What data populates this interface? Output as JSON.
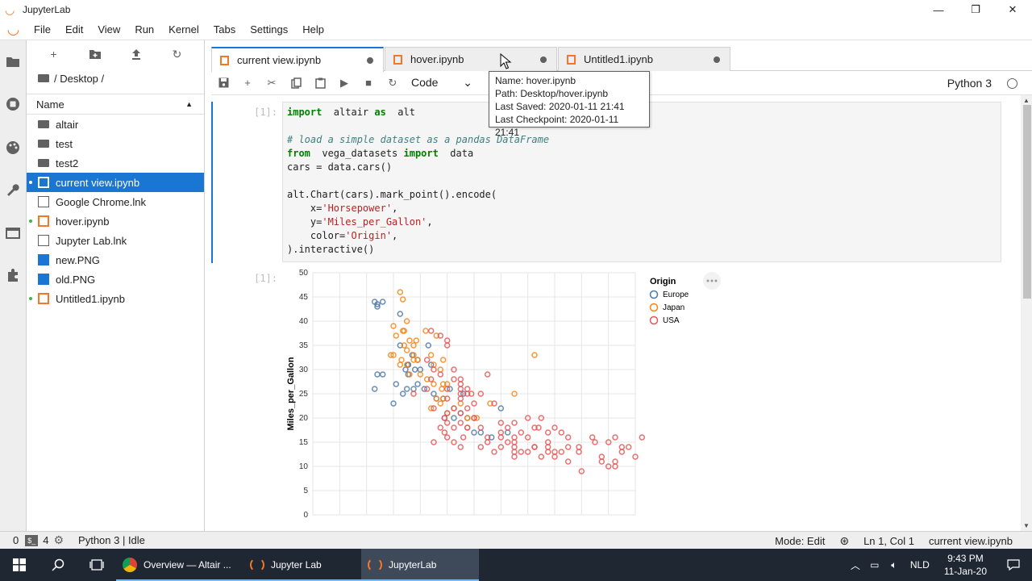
{
  "window": {
    "title": "JupyterLab",
    "minimize": "—",
    "maximize": "❐",
    "close": "✕"
  },
  "menu": [
    "File",
    "Edit",
    "View",
    "Run",
    "Kernel",
    "Tabs",
    "Settings",
    "Help"
  ],
  "filebrowser": {
    "breadcrumb": "/ Desktop /",
    "header": "Name",
    "items": [
      {
        "name": "altair",
        "type": "folder",
        "running": false,
        "selected": false
      },
      {
        "name": "test",
        "type": "folder",
        "running": false,
        "selected": false
      },
      {
        "name": "test2",
        "type": "folder",
        "running": false,
        "selected": false
      },
      {
        "name": "current view.ipynb",
        "type": "notebook",
        "running": true,
        "selected": true
      },
      {
        "name": "Google Chrome.lnk",
        "type": "file",
        "running": false,
        "selected": false
      },
      {
        "name": "hover.ipynb",
        "type": "notebook",
        "running": true,
        "selected": false
      },
      {
        "name": "Jupyter Lab.lnk",
        "type": "file",
        "running": false,
        "selected": false
      },
      {
        "name": "new.PNG",
        "type": "image",
        "running": false,
        "selected": false
      },
      {
        "name": "old.PNG",
        "type": "image",
        "running": false,
        "selected": false
      },
      {
        "name": "Untitled1.ipynb",
        "type": "notebook",
        "running": true,
        "selected": false
      }
    ]
  },
  "tabs": [
    {
      "label": "current view.ipynb",
      "active": true
    },
    {
      "label": "hover.ipynb",
      "active": false
    },
    {
      "label": "Untitled1.ipynb",
      "active": false
    }
  ],
  "toolbar": {
    "cell_type": "Code",
    "kernel": "Python 3"
  },
  "tooltip": {
    "name": "Name: hover.ipynb",
    "path": "Path: Desktop/hover.ipynb",
    "saved": "Last Saved: 2020-01-11 21:41",
    "checkpoint": "Last Checkpoint: 2020-01-11 21:41"
  },
  "cell": {
    "prompt_in": "[1]:",
    "prompt_out": "[1]:",
    "code": [
      [
        [
          "kw",
          "import"
        ],
        [
          "",
          "  altair "
        ],
        [
          "kw",
          "as"
        ],
        [
          "",
          "  alt"
        ]
      ],
      [],
      [
        [
          "cm",
          "# load a simple dataset as a pandas DataFrame"
        ]
      ],
      [
        [
          "kw",
          "from"
        ],
        [
          "",
          "  vega_datasets "
        ],
        [
          "kw",
          "import"
        ],
        [
          "",
          "  data"
        ]
      ],
      [
        [
          "",
          "cars = data.cars()"
        ]
      ],
      [],
      [
        [
          "",
          "alt.Chart(cars).mark_point().encode("
        ]
      ],
      [
        [
          "",
          "    x="
        ],
        [
          "st",
          "'Horsepower'"
        ],
        [
          "",
          ","
        ]
      ],
      [
        [
          "",
          "    y="
        ],
        [
          "st",
          "'Miles_per_Gallon'"
        ],
        [
          "",
          ","
        ]
      ],
      [
        [
          "",
          "    color="
        ],
        [
          "st",
          "'Origin'"
        ],
        [
          "",
          ","
        ]
      ],
      [
        [
          "",
          ").interactive()"
        ]
      ]
    ]
  },
  "chart_data": {
    "type": "scatter",
    "title": "",
    "xlabel": "",
    "ylabel": "Miles_per_Gallon",
    "ylim": [
      0,
      50
    ],
    "xlim": [
      0,
      240
    ],
    "y_ticks": [
      0,
      5,
      10,
      15,
      20,
      25,
      30,
      35,
      40,
      45,
      50
    ],
    "grid": true,
    "legend_title": "Origin",
    "legend_position": "right",
    "series": [
      {
        "name": "Europe",
        "color": "#4c78a8",
        "points": [
          [
            46,
            44
          ],
          [
            48,
            43.5
          ],
          [
            52,
            44
          ],
          [
            65,
            41.5
          ],
          [
            48,
            43
          ],
          [
            46,
            26
          ],
          [
            52,
            29
          ],
          [
            48,
            29
          ],
          [
            62,
            27
          ],
          [
            67,
            25
          ],
          [
            70,
            26
          ],
          [
            71,
            29
          ],
          [
            75,
            26
          ],
          [
            78,
            27
          ],
          [
            90,
            25
          ],
          [
            88,
            31
          ],
          [
            80,
            30
          ],
          [
            71,
            31
          ],
          [
            76,
            30
          ],
          [
            92,
            24
          ],
          [
            97,
            24
          ],
          [
            102,
            26
          ],
          [
            110,
            21
          ],
          [
            112,
            25
          ],
          [
            115,
            20
          ],
          [
            120,
            17
          ],
          [
            125,
            17
          ],
          [
            133,
            16
          ],
          [
            140,
            22
          ],
          [
            145,
            17
          ],
          [
            74,
            33
          ],
          [
            69,
            30
          ],
          [
            78,
            32
          ],
          [
            83,
            26
          ],
          [
            98,
            20
          ],
          [
            105,
            20
          ],
          [
            60,
            23
          ],
          [
            65,
            35
          ],
          [
            71,
            31
          ],
          [
            86,
            35
          ]
        ]
      },
      {
        "name": "Japan",
        "color": "#f58518",
        "points": [
          [
            65,
            46
          ],
          [
            67,
            44.5
          ],
          [
            60,
            39
          ],
          [
            62,
            37
          ],
          [
            68,
            38
          ],
          [
            70,
            34
          ],
          [
            75,
            32
          ],
          [
            78,
            32
          ],
          [
            72,
            36
          ],
          [
            88,
            33
          ],
          [
            90,
            31
          ],
          [
            95,
            30
          ],
          [
            97,
            27
          ],
          [
            100,
            27
          ],
          [
            75,
            33
          ],
          [
            68,
            35
          ],
          [
            65,
            31
          ],
          [
            60,
            33
          ],
          [
            58,
            33
          ],
          [
            66,
            32
          ],
          [
            70,
            31
          ],
          [
            72,
            29
          ],
          [
            80,
            29
          ],
          [
            85,
            28
          ],
          [
            90,
            27
          ],
          [
            92,
            24
          ],
          [
            97,
            24
          ],
          [
            105,
            22
          ],
          [
            110,
            23
          ],
          [
            115,
            20
          ],
          [
            122,
            20
          ],
          [
            132,
            23
          ],
          [
            150,
            25
          ],
          [
            165,
            33
          ],
          [
            75,
            35
          ],
          [
            70,
            40
          ],
          [
            67,
            38
          ],
          [
            77,
            36
          ],
          [
            84,
            38
          ],
          [
            92,
            37
          ],
          [
            97,
            32
          ],
          [
            95,
            23
          ],
          [
            100,
            21
          ],
          [
            88,
            22
          ],
          [
            96,
            26
          ]
        ]
      },
      {
        "name": "USA",
        "color": "#e45756",
        "points": [
          [
            88,
            38
          ],
          [
            100,
            36
          ],
          [
            105,
            30
          ],
          [
            110,
            28
          ],
          [
            110,
            26
          ],
          [
            110,
            24
          ],
          [
            105,
            22
          ],
          [
            100,
            21
          ],
          [
            98,
            20
          ],
          [
            90,
            22
          ],
          [
            95,
            18
          ],
          [
            98,
            17
          ],
          [
            100,
            16
          ],
          [
            105,
            15
          ],
          [
            110,
            14
          ],
          [
            112,
            16
          ],
          [
            115,
            18
          ],
          [
            120,
            20
          ],
          [
            125,
            25
          ],
          [
            130,
            29
          ],
          [
            135,
            23
          ],
          [
            140,
            19
          ],
          [
            140,
            17
          ],
          [
            145,
            15
          ],
          [
            150,
            14
          ],
          [
            150,
            13
          ],
          [
            150,
            12
          ],
          [
            155,
            13
          ],
          [
            160,
            13
          ],
          [
            165,
            18
          ],
          [
            170,
            20
          ],
          [
            175,
            15
          ],
          [
            175,
            14
          ],
          [
            180,
            13
          ],
          [
            180,
            12
          ],
          [
            190,
            14
          ],
          [
            190,
            11
          ],
          [
            198,
            13
          ],
          [
            200,
            9
          ],
          [
            210,
            15
          ],
          [
            215,
            12
          ],
          [
            220,
            10
          ],
          [
            225,
            11
          ],
          [
            230,
            14
          ],
          [
            230,
            13
          ],
          [
            225,
            16
          ],
          [
            220,
            15
          ],
          [
            215,
            11
          ],
          [
            208,
            16
          ],
          [
            198,
            14
          ],
          [
            190,
            16
          ],
          [
            185,
            17
          ],
          [
            180,
            18
          ],
          [
            175,
            13
          ],
          [
            170,
            12
          ],
          [
            165,
            14
          ],
          [
            160,
            16
          ],
          [
            155,
            17
          ],
          [
            150,
            15
          ],
          [
            145,
            18
          ],
          [
            140,
            14
          ],
          [
            135,
            13
          ],
          [
            130,
            16
          ],
          [
            125,
            18
          ],
          [
            120,
            20
          ],
          [
            115,
            22
          ],
          [
            110,
            19
          ],
          [
            105,
            18
          ],
          [
            100,
            19
          ],
          [
            100,
            26
          ],
          [
            105,
            28
          ],
          [
            110,
            27
          ],
          [
            115,
            25
          ],
          [
            100,
            24
          ],
          [
            95,
            29
          ],
          [
            90,
            30
          ],
          [
            85,
            32
          ],
          [
            88,
            28
          ],
          [
            85,
            26
          ],
          [
            115,
            26
          ],
          [
            120,
            23
          ],
          [
            110,
            21
          ],
          [
            235,
            14
          ],
          [
            240,
            12
          ],
          [
            245,
            16
          ],
          [
            100,
            35
          ],
          [
            95,
            37
          ],
          [
            118,
            25
          ],
          [
            125,
            14
          ],
          [
            130,
            15
          ],
          [
            140,
            16
          ],
          [
            150,
            16
          ],
          [
            165,
            14
          ],
          [
            168,
            18
          ],
          [
            225,
            10
          ],
          [
            90,
            15
          ],
          [
            75,
            25
          ],
          [
            110,
            25
          ],
          [
            115,
            18
          ],
          [
            150,
            19
          ],
          [
            160,
            20
          ],
          [
            175,
            17
          ],
          [
            185,
            13
          ]
        ]
      }
    ]
  },
  "statusbar": {
    "terminals": "0",
    "kernels": "4",
    "kernel_status": "Python 3 | Idle",
    "mode": "Mode: Edit",
    "position": "Ln 1, Col 1",
    "file": "current view.ipynb"
  },
  "taskbar": {
    "apps": [
      {
        "label": "Overview — Altair ...",
        "active": false
      },
      {
        "label": "Jupyter Lab",
        "active": false
      },
      {
        "label": "JupyterLab",
        "active": true
      }
    ],
    "lang": "NLD",
    "time": "9:43 PM",
    "date": "11-Jan-20"
  }
}
